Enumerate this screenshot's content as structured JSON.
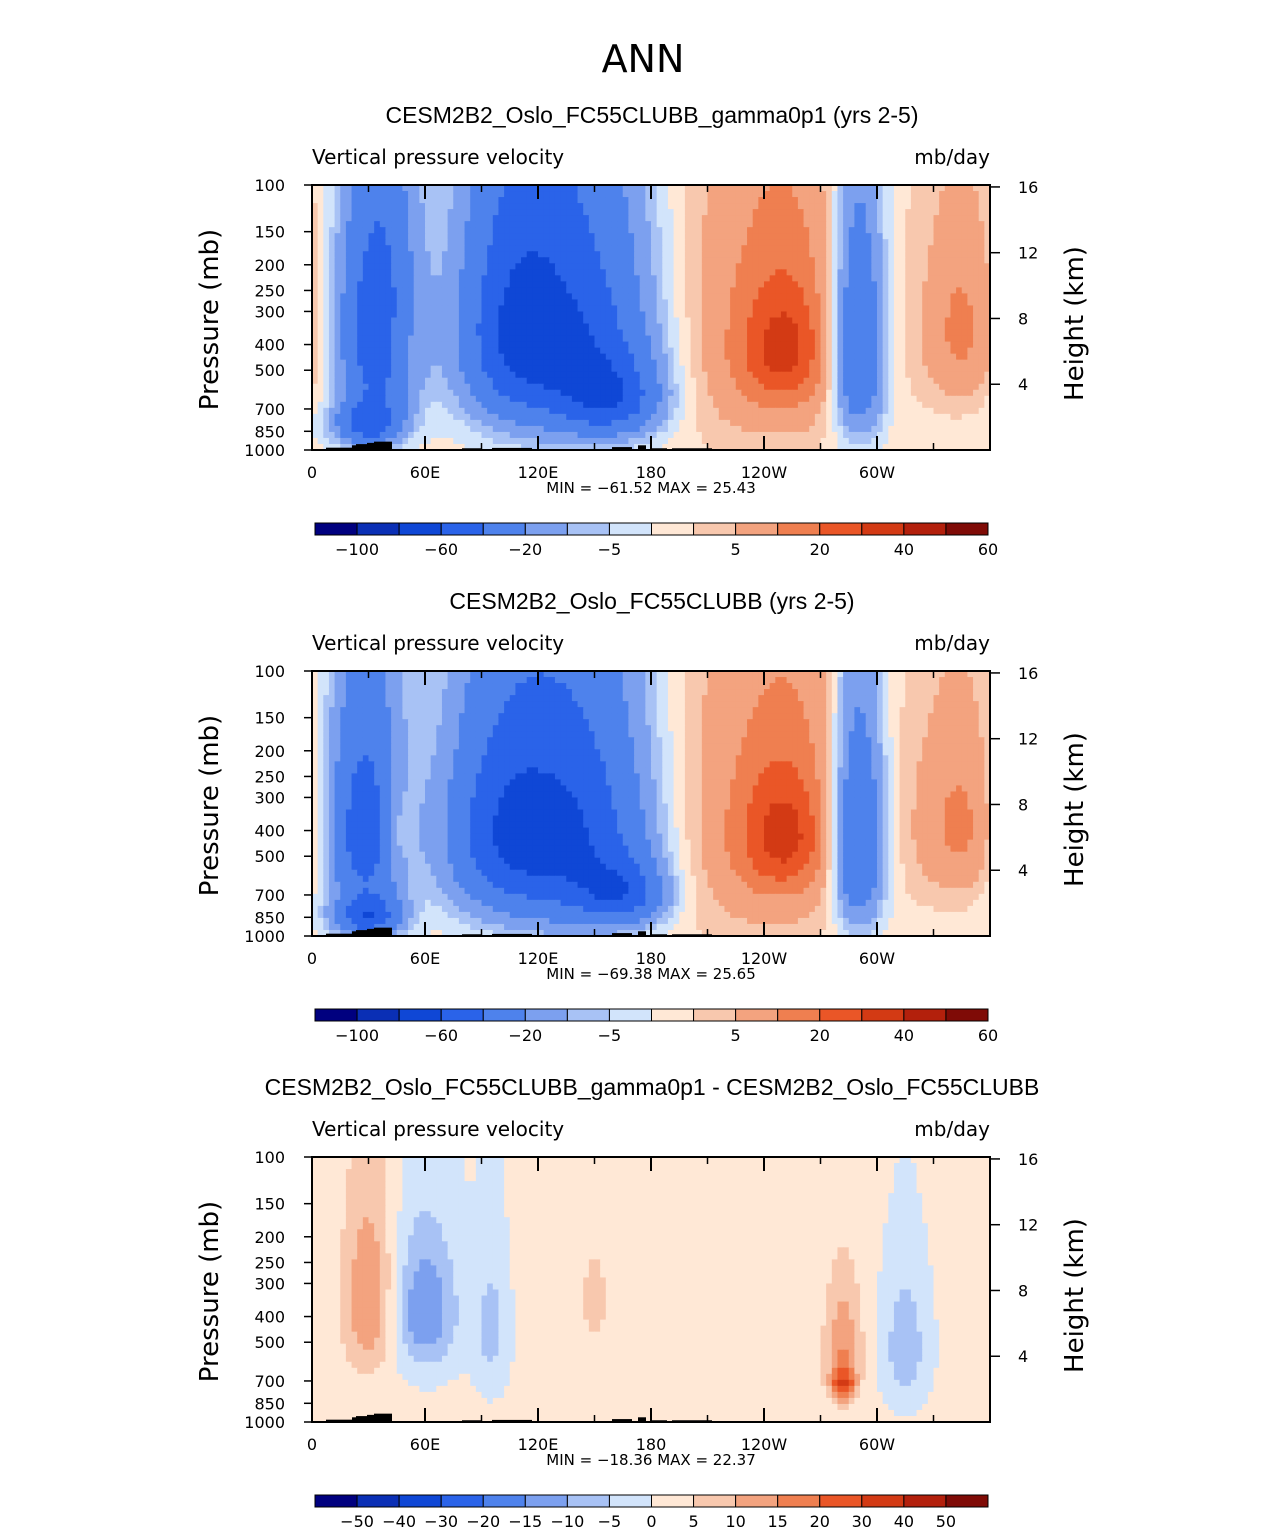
{
  "figure": {
    "title": "ANN"
  },
  "colors": {
    "scale": [
      "#00007f",
      "#0a2fb5",
      "#0f47d6",
      "#2a63e9",
      "#4e82ec",
      "#7ca0ef",
      "#a8c2f5",
      "#d2e4fb",
      "#ffe8d6",
      "#f8c8ae",
      "#f3a37f",
      "#ef7f50",
      "#ea5627",
      "#d33a14",
      "#b3200c",
      "#7f0b06"
    ],
    "topo": "#000000"
  },
  "chart_data": [
    {
      "type": "heatmap",
      "title": "CESM2B2_Oslo_FC55CLUBB_gamma0p1 (yrs 2-5)",
      "variable": "Vertical pressure velocity",
      "units": "mb/day",
      "xlabel": "",
      "ylabel": "Pressure (mb)",
      "ylabel_right": "Height (km)",
      "x_ticks": [
        "0",
        "60E",
        "120E",
        "180",
        "120W",
        "60W"
      ],
      "y_ticks": [
        "100",
        "150",
        "200",
        "250",
        "300",
        "400",
        "500",
        "700",
        "850",
        "1000"
      ],
      "y_ticks_right": [
        "16",
        "12",
        "8",
        "4"
      ],
      "stats": "MIN = −61.52   MAX =   25.43",
      "min": -61.52,
      "max": 25.43,
      "colorbar_labels": [
        "−100",
        "−60",
        "−20",
        "−5",
        "5",
        "20",
        "40",
        "60"
      ],
      "features": [
        {
          "lon": 35,
          "p": 350,
          "w": 14,
          "h": 500,
          "level": -60
        },
        {
          "lon": 30,
          "p": 800,
          "w": 12,
          "h": 220,
          "level": -50
        },
        {
          "lon": 47,
          "p": 400,
          "w": 5,
          "h": 220,
          "level": 14
        },
        {
          "lon": 105,
          "p": 350,
          "w": 20,
          "h": 520,
          "level": -45
        },
        {
          "lon": 140,
          "p": 380,
          "w": 28,
          "h": 600,
          "level": -55
        },
        {
          "lon": 160,
          "p": 650,
          "w": 18,
          "h": 300,
          "level": -40
        },
        {
          "lon": 245,
          "p": 350,
          "w": 38,
          "h": 800,
          "level": 18
        },
        {
          "lon": 250,
          "p": 420,
          "w": 16,
          "h": 320,
          "level": 26
        },
        {
          "lon": 290,
          "p": 420,
          "w": 10,
          "h": 600,
          "level": -50
        },
        {
          "lon": 345,
          "p": 350,
          "w": 14,
          "h": 400,
          "level": 20
        }
      ]
    },
    {
      "type": "heatmap",
      "title": "CESM2B2_Oslo_FC55CLUBB (yrs 2-5)",
      "variable": "Vertical pressure velocity",
      "units": "mb/day",
      "xlabel": "",
      "ylabel": "Pressure (mb)",
      "ylabel_right": "Height (km)",
      "x_ticks": [
        "0",
        "60E",
        "120E",
        "180",
        "120W",
        "60W"
      ],
      "y_ticks": [
        "100",
        "150",
        "200",
        "250",
        "300",
        "400",
        "500",
        "700",
        "850",
        "1000"
      ],
      "y_ticks_right": [
        "16",
        "12",
        "8",
        "4"
      ],
      "stats": "MIN = −69.38   MAX =   25.65",
      "min": -69.38,
      "max": 25.65,
      "colorbar_labels": [
        "−100",
        "−60",
        "−20",
        "−5",
        "5",
        "20",
        "40",
        "60"
      ],
      "features": [
        {
          "lon": 28,
          "p": 400,
          "w": 14,
          "h": 520,
          "level": -55
        },
        {
          "lon": 30,
          "p": 850,
          "w": 12,
          "h": 200,
          "level": -50
        },
        {
          "lon": 45,
          "p": 400,
          "w": 6,
          "h": 220,
          "level": 15
        },
        {
          "lon": 100,
          "p": 400,
          "w": 22,
          "h": 520,
          "level": -45
        },
        {
          "lon": 140,
          "p": 420,
          "w": 28,
          "h": 620,
          "level": -58
        },
        {
          "lon": 165,
          "p": 700,
          "w": 16,
          "h": 260,
          "level": -40
        },
        {
          "lon": 245,
          "p": 380,
          "w": 40,
          "h": 800,
          "level": 18
        },
        {
          "lon": 250,
          "p": 420,
          "w": 16,
          "h": 320,
          "level": 26
        },
        {
          "lon": 290,
          "p": 450,
          "w": 10,
          "h": 600,
          "level": -52
        },
        {
          "lon": 345,
          "p": 380,
          "w": 16,
          "h": 420,
          "level": 20
        }
      ]
    },
    {
      "type": "heatmap",
      "title": "CESM2B2_Oslo_FC55CLUBB_gamma0p1 - CESM2B2_Oslo_FC55CLUBB",
      "variable": "Vertical pressure velocity",
      "units": "mb/day",
      "xlabel": "",
      "ylabel": "Pressure (mb)",
      "ylabel_right": "Height (km)",
      "x_ticks": [
        "0",
        "60E",
        "120E",
        "180",
        "120W",
        "60W"
      ],
      "y_ticks": [
        "100",
        "150",
        "200",
        "250",
        "300",
        "400",
        "500",
        "700",
        "850",
        "1000"
      ],
      "y_ticks_right": [
        "16",
        "12",
        "8",
        "4"
      ],
      "stats": "MIN = −18.36   MAX =   22.37",
      "min": -18.36,
      "max": 22.37,
      "colorbar_labels": [
        "−50",
        "−40",
        "−30",
        "−20",
        "−15",
        "−10",
        "−5",
        "0",
        "5",
        "10",
        "15",
        "20",
        "30",
        "40",
        "50"
      ],
      "features": [
        {
          "lon": 30,
          "p": 350,
          "w": 10,
          "h": 400,
          "level": 14
        },
        {
          "lon": 60,
          "p": 380,
          "w": 12,
          "h": 320,
          "level": -16
        },
        {
          "lon": 95,
          "p": 450,
          "w": 6,
          "h": 380,
          "level": -8
        },
        {
          "lon": 150,
          "p": 350,
          "w": 6,
          "h": 250,
          "level": 6
        },
        {
          "lon": 282,
          "p": 550,
          "w": 7,
          "h": 420,
          "level": 14
        },
        {
          "lon": 282,
          "p": 720,
          "w": 4,
          "h": 120,
          "level": 22
        },
        {
          "lon": 315,
          "p": 520,
          "w": 8,
          "h": 400,
          "level": -10
        }
      ]
    }
  ]
}
